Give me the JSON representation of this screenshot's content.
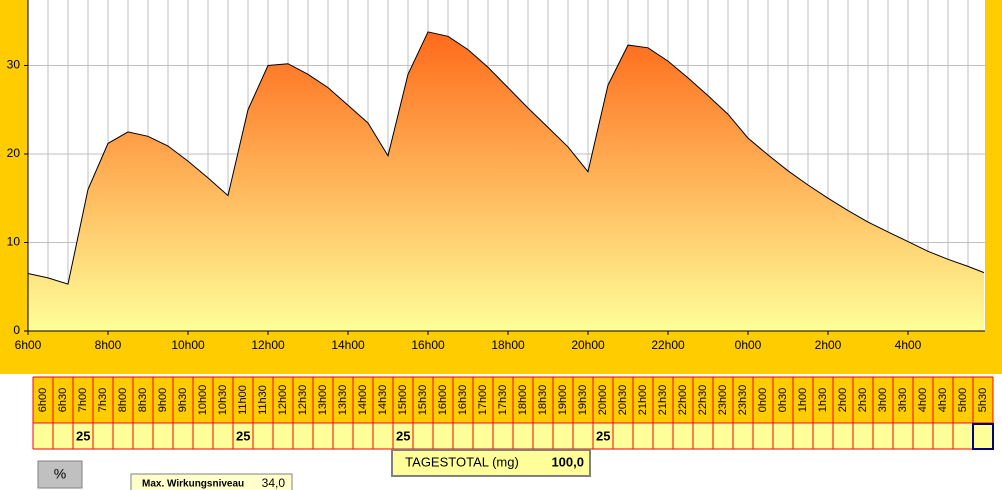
{
  "chart_data": {
    "type": "area",
    "x": [
      0,
      0.5,
      1,
      1.5,
      2,
      2.5,
      3,
      3.5,
      4,
      4.5,
      5,
      5.5,
      6,
      6.5,
      7,
      7.5,
      8,
      8.5,
      9,
      9.5,
      10,
      10.5,
      11,
      11.5,
      12,
      12.5,
      13,
      13.5,
      14,
      14.5,
      15,
      15.5,
      16,
      16.5,
      17,
      17.5,
      18,
      18.5,
      19,
      19.5,
      20,
      20.5,
      21,
      21.5,
      22,
      22.5,
      23,
      23.5,
      23.9
    ],
    "values": [
      6.5,
      6.0,
      5.3,
      16.0,
      21.2,
      22.5,
      22.0,
      20.9,
      19.2,
      17.3,
      15.3,
      25.0,
      30.0,
      30.2,
      29.0,
      27.5,
      25.5,
      23.5,
      19.8,
      29.0,
      33.8,
      33.3,
      31.8,
      29.8,
      27.5,
      25.2,
      23.0,
      20.8,
      18.0,
      27.8,
      32.3,
      32.0,
      30.5,
      28.6,
      26.6,
      24.5,
      21.8,
      19.9,
      18.1,
      16.5,
      15.0,
      13.6,
      12.3,
      11.2,
      10.1,
      9.0,
      8.1,
      7.3,
      6.6
    ],
    "xlim": [
      0,
      23.925
    ],
    "ylim": [
      0,
      37.4
    ],
    "yticks": [
      0,
      10,
      20,
      30
    ],
    "xticks": [
      {
        "value": 0,
        "label": "6h00"
      },
      {
        "value": 2,
        "label": "8h00"
      },
      {
        "value": 4,
        "label": "10h00"
      },
      {
        "value": 6,
        "label": "12h00"
      },
      {
        "value": 8,
        "label": "14h00"
      },
      {
        "value": 10,
        "label": "16h00"
      },
      {
        "value": 12,
        "label": "18h00"
      },
      {
        "value": 14,
        "label": "20h00"
      },
      {
        "value": 16,
        "label": "22h00"
      },
      {
        "value": 18,
        "label": "0h00"
      },
      {
        "value": 20,
        "label": "2h00"
      },
      {
        "value": 22,
        "label": "4h00"
      }
    ],
    "x_grid": [
      0,
      0.5,
      1,
      1.5,
      2,
      2.5,
      3,
      3.5,
      4,
      4.5,
      5,
      5.5,
      6,
      6.5,
      7,
      7.5,
      8,
      8.5,
      9,
      9.5,
      10,
      10.5,
      11,
      11.5,
      12,
      12.5,
      13,
      13.5,
      14,
      14.5,
      15,
      15.5,
      16,
      16.5,
      17,
      17.5,
      18,
      18.5,
      19,
      19.5,
      20,
      20.5,
      21,
      21.5,
      22,
      22.5,
      23,
      23.5
    ],
    "grid": true,
    "color_top": "#ff6a1a",
    "color_bottom": "#ffff99",
    "background": "#ffcc00"
  },
  "table": {
    "columns": [
      "6h00",
      "6h30",
      "7h00",
      "7h30",
      "8h00",
      "8h30",
      "9h00",
      "9h30",
      "10h00",
      "10h30",
      "11h00",
      "11h30",
      "12h00",
      "12h30",
      "13h00",
      "13h30",
      "14h00",
      "14h30",
      "15h00",
      "15h30",
      "16h00",
      "16h30",
      "17h00",
      "17h30",
      "18h00",
      "18h30",
      "19h00",
      "19h30",
      "20h00",
      "20h30",
      "21h00",
      "21h30",
      "22h00",
      "22h30",
      "23h00",
      "23h30",
      "0h00",
      "0h30",
      "1h00",
      "1h30",
      "2h00",
      "2h30",
      "3h00",
      "3h30",
      "4h00",
      "4h30",
      "5h00",
      "5h30"
    ],
    "doses": [
      null,
      null,
      25,
      null,
      null,
      null,
      null,
      null,
      null,
      null,
      25,
      null,
      null,
      null,
      null,
      null,
      null,
      null,
      25,
      null,
      null,
      null,
      null,
      null,
      null,
      null,
      null,
      null,
      25,
      null,
      null,
      null,
      null,
      null,
      null,
      null,
      null,
      null,
      null,
      null,
      null,
      null,
      null,
      null,
      null,
      null,
      null,
      null
    ]
  },
  "percent_button": "%",
  "total": {
    "label": "TAGESTOTAL (mg)",
    "value": "100,0"
  },
  "max_level": {
    "label": "Max. Wirkungsniveau",
    "value": "34,0"
  }
}
